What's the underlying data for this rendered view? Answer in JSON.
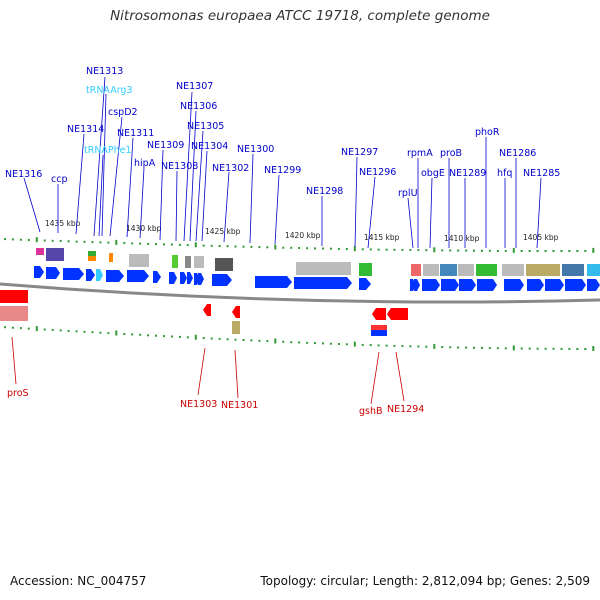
{
  "title": "Nitrosomonas europaea ATCC 19718, complete genome",
  "footer": {
    "accession": "Accession: NC_004757",
    "topology": "Topology: circular; Length: 2,812,094 bp; Genes: 2,509"
  },
  "colors": {
    "forward_gene": "#0033ff",
    "reverse_gene": "#ff0000",
    "label_blue": "#0000cc",
    "label_cyan": "#33ccff",
    "label_red": "#cc0000",
    "tick": "#339933",
    "backbone": "#888888"
  },
  "kbp_ticks": [
    "1435 kbp",
    "1430 kbp",
    "1425 kbp",
    "1420 kbp",
    "1415 kbp",
    "1410 kbp",
    "1405 kbp"
  ],
  "top_labels": [
    {
      "text": "NE1313",
      "color": "blue"
    },
    {
      "text": "tRNAArg3",
      "color": "cyan"
    },
    {
      "text": "cspD2",
      "color": "blue"
    },
    {
      "text": "NE1314",
      "color": "blue"
    },
    {
      "text": "NE1311",
      "color": "blue"
    },
    {
      "text": "tRNAPhe1",
      "color": "cyan"
    },
    {
      "text": "NE1316",
      "color": "blue"
    },
    {
      "text": "ccp",
      "color": "blue"
    },
    {
      "text": "hipA",
      "color": "blue"
    },
    {
      "text": "NE1309",
      "color": "blue"
    },
    {
      "text": "NE1308",
      "color": "blue"
    },
    {
      "text": "NE1307",
      "color": "blue"
    },
    {
      "text": "NE1306",
      "color": "blue"
    },
    {
      "text": "NE1305",
      "color": "blue"
    },
    {
      "text": "NE1304",
      "color": "blue"
    },
    {
      "text": "NE1302",
      "color": "blue"
    },
    {
      "text": "NE1300",
      "color": "blue"
    },
    {
      "text": "NE1299",
      "color": "blue"
    },
    {
      "text": "NE1298",
      "color": "blue"
    },
    {
      "text": "NE1297",
      "color": "blue"
    },
    {
      "text": "NE1296",
      "color": "blue"
    },
    {
      "text": "rplU",
      "color": "blue"
    },
    {
      "text": "rpmA",
      "color": "blue"
    },
    {
      "text": "obgE",
      "color": "blue"
    },
    {
      "text": "proB",
      "color": "blue"
    },
    {
      "text": "NE1289",
      "color": "blue"
    },
    {
      "text": "phoR",
      "color": "blue"
    },
    {
      "text": "hfq",
      "color": "blue"
    },
    {
      "text": "NE1286",
      "color": "blue"
    },
    {
      "text": "NE1285",
      "color": "blue"
    }
  ],
  "bottom_labels": [
    {
      "text": "proS",
      "color": "red"
    },
    {
      "text": "NE1303",
      "color": "red"
    },
    {
      "text": "NE1301",
      "color": "red"
    },
    {
      "text": "gshB",
      "color": "red"
    },
    {
      "text": "NE1294",
      "color": "red"
    }
  ]
}
